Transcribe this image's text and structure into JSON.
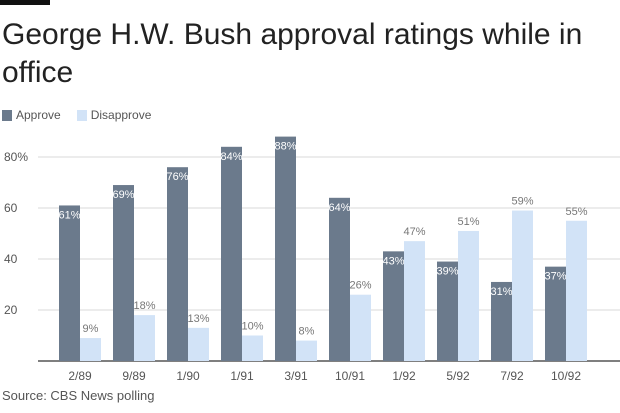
{
  "title": "George H.W. Bush approval ratings while in office",
  "legend": {
    "approve_label": "Approve",
    "disapprove_label": "Disapprove"
  },
  "colors": {
    "approve": "#6b7a8c",
    "disapprove": "#d2e3f7"
  },
  "source": "Source: CBS News polling",
  "chart_data": {
    "type": "bar",
    "title": "George H.W. Bush approval ratings while in office",
    "xlabel": "",
    "ylabel": "",
    "ylim": [
      0,
      100
    ],
    "y_ticks": [
      20,
      40,
      60,
      80
    ],
    "y_tick_labels": [
      "20",
      "40",
      "60",
      "80%"
    ],
    "grid": true,
    "legend_position": "top-left",
    "categories": [
      "2/89",
      "9/89",
      "1/90",
      "1/91",
      "3/91",
      "10/91",
      "1/92",
      "5/92",
      "7/92",
      "10/92"
    ],
    "series": [
      {
        "name": "Approve",
        "values": [
          61,
          69,
          76,
          84,
          88,
          64,
          43,
          39,
          31,
          37
        ],
        "labels": [
          "61%",
          "69%",
          "76%",
          "84%",
          "88%",
          "64%",
          "43%",
          "39%",
          "31%",
          "37%"
        ]
      },
      {
        "name": "Disapprove",
        "values": [
          9,
          18,
          13,
          10,
          8,
          26,
          47,
          51,
          59,
          55
        ],
        "labels": [
          "9%",
          "18%",
          "13%",
          "10%",
          "8%",
          "26%",
          "47%",
          "51%",
          "59%",
          "55%"
        ]
      }
    ]
  }
}
